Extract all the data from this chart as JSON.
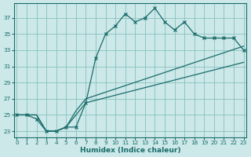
{
  "xlabel": "Humidex (Indice chaleur)",
  "bg_color": "#cce8e8",
  "grid_color": "#88c0c0",
  "line_color": "#1a6b6b",
  "xlim": [
    -0.3,
    23.3
  ],
  "ylim": [
    22.2,
    38.8
  ],
  "yticks": [
    23,
    25,
    27,
    29,
    31,
    33,
    35,
    37
  ],
  "xticks": [
    0,
    1,
    2,
    3,
    4,
    5,
    6,
    7,
    8,
    9,
    10,
    11,
    12,
    13,
    14,
    15,
    16,
    17,
    18,
    19,
    20,
    21,
    22,
    23
  ],
  "main_x": [
    0,
    1,
    2,
    3,
    4,
    5,
    6,
    7,
    8,
    9,
    10,
    11,
    12,
    13,
    14,
    15,
    16,
    17,
    18,
    19,
    20,
    21,
    22,
    23
  ],
  "main_y": [
    25.0,
    25.0,
    24.5,
    23.0,
    23.0,
    23.5,
    23.5,
    26.5,
    32.0,
    35.0,
    36.0,
    37.5,
    36.5,
    37.0,
    38.2,
    36.5,
    35.5,
    36.5,
    35.0,
    34.5,
    34.5,
    34.5,
    34.5,
    33.0
  ],
  "trend_upper_x": [
    0,
    2,
    3,
    4,
    5,
    6,
    7,
    23
  ],
  "trend_upper_y": [
    25.0,
    25.0,
    23.0,
    23.0,
    23.5,
    25.5,
    27.0,
    33.5
  ],
  "trend_lower_x": [
    0,
    2,
    3,
    4,
    5,
    6,
    7,
    23
  ],
  "trend_lower_y": [
    25.0,
    25.0,
    23.0,
    23.0,
    23.5,
    25.0,
    26.5,
    31.5
  ]
}
